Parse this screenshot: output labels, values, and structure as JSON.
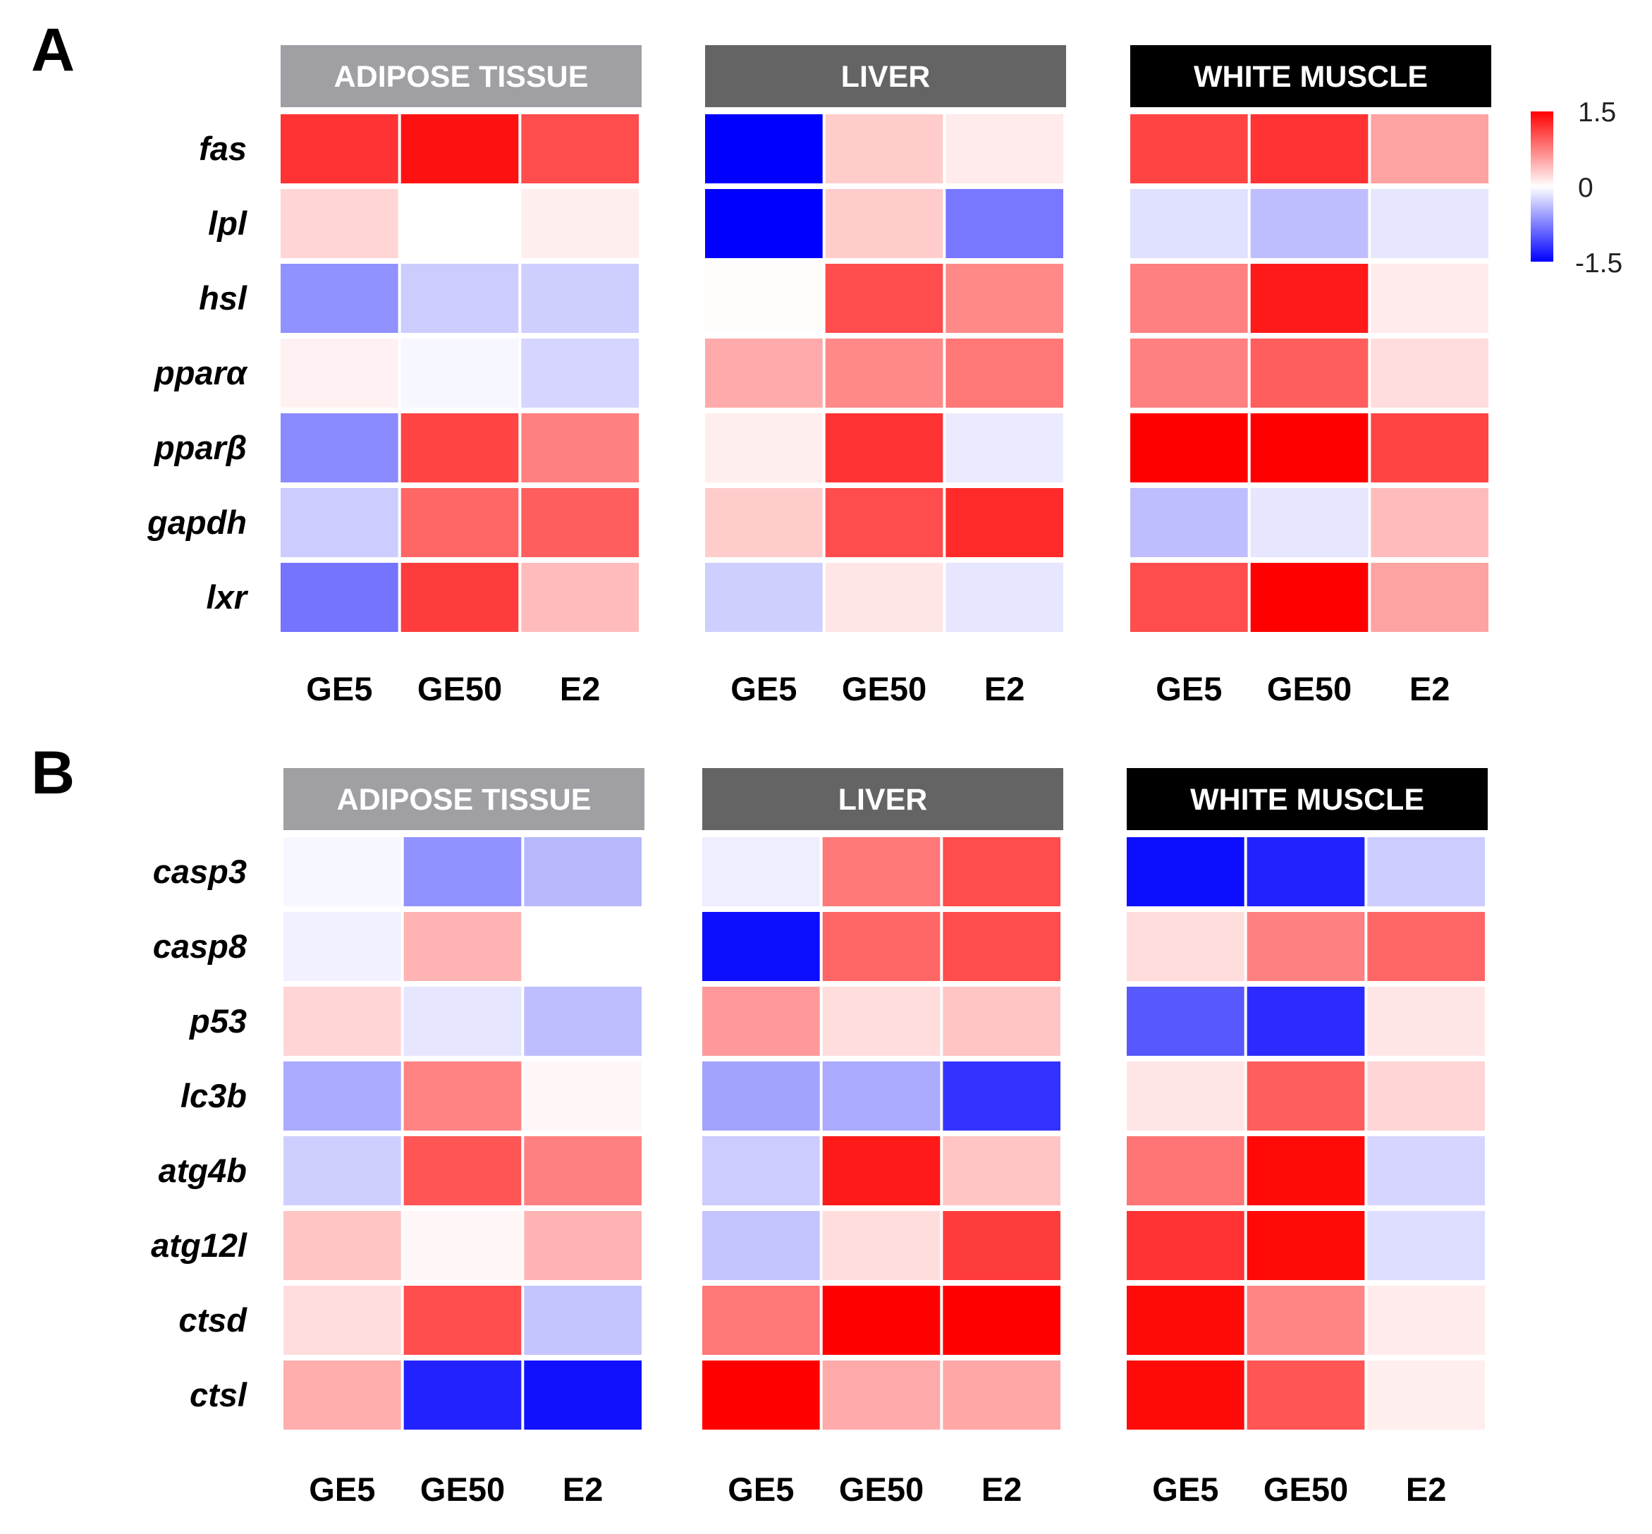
{
  "legend": {
    "max_label": "1.5",
    "mid_label": "0",
    "min_label": "-1.5"
  },
  "chart_data": [
    {
      "type": "heatmap",
      "panel": "A",
      "value_range": [
        -1.5,
        1.5
      ],
      "colors": {
        "low": "#0000ff",
        "mid": "#ffffff",
        "high": "#ff0000"
      },
      "title_colors": [
        "#a0a0a4",
        "#646464",
        "#000000"
      ],
      "conditions": [
        "GE5",
        "GE50",
        "E2"
      ],
      "genes": [
        "fas",
        "lpl",
        "hsl",
        "pparα",
        "pparβ",
        "gapdh",
        "lxr"
      ],
      "tissues": [
        {
          "name": "ADIPOSE TISSUE",
          "values": [
            [
              1.2,
              1.4,
              1.05
            ],
            [
              0.25,
              0.0,
              0.1
            ],
            [
              -0.65,
              -0.3,
              -0.28
            ],
            [
              0.08,
              -0.05,
              -0.25
            ],
            [
              -0.68,
              1.1,
              0.75
            ],
            [
              -0.3,
              0.9,
              0.95
            ],
            [
              -0.82,
              1.15,
              0.4
            ]
          ]
        },
        {
          "name": "LIVER",
          "values": [
            [
              -1.5,
              0.3,
              0.12
            ],
            [
              -1.5,
              0.3,
              -0.8
            ],
            [
              0.02,
              1.05,
              0.7
            ],
            [
              0.5,
              0.7,
              0.8
            ],
            [
              0.1,
              1.2,
              -0.12
            ],
            [
              0.3,
              1.05,
              1.25
            ],
            [
              -0.28,
              0.15,
              -0.15
            ]
          ]
        },
        {
          "name": "WHITE MUSCLE",
          "values": [
            [
              1.1,
              1.2,
              0.55
            ],
            [
              -0.18,
              -0.38,
              -0.15
            ],
            [
              0.75,
              1.35,
              0.12
            ],
            [
              0.75,
              0.95,
              0.2
            ],
            [
              1.55,
              1.55,
              1.1
            ],
            [
              -0.38,
              -0.15,
              0.4
            ],
            [
              1.05,
              1.55,
              0.55
            ]
          ]
        }
      ]
    },
    {
      "type": "heatmap",
      "panel": "B",
      "value_range": [
        -1.5,
        1.5
      ],
      "colors": {
        "low": "#0000ff",
        "mid": "#ffffff",
        "high": "#ff0000"
      },
      "title_colors": [
        "#a0a0a4",
        "#646464",
        "#000000"
      ],
      "conditions": [
        "GE5",
        "GE50",
        "E2"
      ],
      "genes": [
        "casp3",
        "casp8",
        "p53",
        "lc3b",
        "atg4b",
        "atg12l",
        "ctsd",
        "ctsl"
      ],
      "tissues": [
        {
          "name": "ADIPOSE TISSUE",
          "values": [
            [
              -0.05,
              -0.65,
              -0.42
            ],
            [
              -0.08,
              0.45,
              0.0
            ],
            [
              0.25,
              -0.15,
              -0.38
            ],
            [
              -0.5,
              0.73,
              0.05
            ],
            [
              -0.28,
              1.0,
              0.75
            ],
            [
              0.35,
              0.05,
              0.45
            ],
            [
              0.2,
              1.05,
              -0.35
            ],
            [
              0.48,
              -1.3,
              -1.4
            ]
          ]
        },
        {
          "name": "LIVER",
          "values": [
            [
              -0.1,
              0.8,
              1.05
            ],
            [
              -1.42,
              0.9,
              1.05
            ],
            [
              0.6,
              0.2,
              0.35
            ],
            [
              -0.55,
              -0.5,
              -1.2
            ],
            [
              -0.3,
              1.35,
              0.35
            ],
            [
              -0.35,
              0.2,
              1.15
            ],
            [
              0.8,
              1.5,
              1.5
            ],
            [
              1.5,
              0.5,
              0.52
            ]
          ]
        },
        {
          "name": "WHITE MUSCLE",
          "values": [
            [
              -1.42,
              -1.3,
              -0.3
            ],
            [
              0.2,
              0.75,
              0.9
            ],
            [
              -0.98,
              -1.25,
              0.15
            ],
            [
              0.15,
              0.95,
              0.25
            ],
            [
              0.82,
              1.45,
              -0.25
            ],
            [
              1.2,
              1.45,
              -0.2
            ],
            [
              1.45,
              0.72,
              0.12
            ],
            [
              1.45,
              1.0,
              0.1
            ]
          ]
        }
      ]
    }
  ]
}
